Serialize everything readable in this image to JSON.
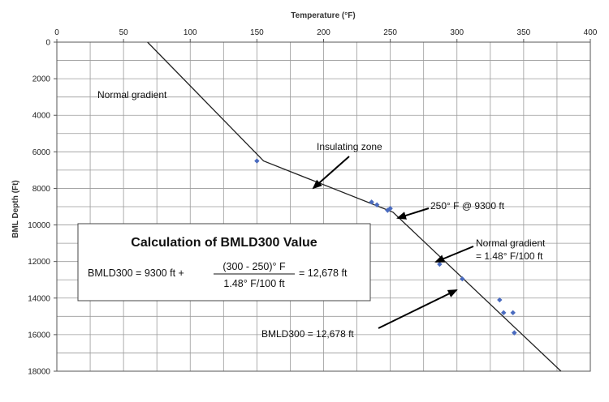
{
  "chart_data": {
    "type": "scatter",
    "title": "",
    "xlabel": "Temperature (°F)",
    "ylabel": "BML Depth (Ft)",
    "x_axis_position": "top",
    "y_axis_reversed": true,
    "xlim": [
      0,
      400
    ],
    "ylim": [
      0,
      18000
    ],
    "x_ticks": [
      "0",
      "50",
      "100",
      "150",
      "200",
      "250",
      "300",
      "350",
      "400"
    ],
    "y_ticks": [
      "0",
      "2000",
      "4000",
      "6000",
      "8000",
      "10000",
      "12000",
      "14000",
      "16000",
      "18000"
    ],
    "grid": true,
    "series": [
      {
        "kind": "points",
        "color": "#4a6bbf",
        "x": [
          150,
          236,
          240,
          248,
          250,
          287,
          304,
          332,
          335,
          342,
          343
        ],
        "y": [
          6500,
          8750,
          8900,
          9200,
          9100,
          12150,
          12950,
          14100,
          14800,
          14800,
          15900
        ]
      },
      {
        "kind": "line",
        "color": "#222222",
        "x": [
          68,
          155,
          252,
          378
        ],
        "y": [
          0,
          6500,
          9300,
          18000
        ]
      }
    ],
    "annotations": [
      {
        "text": "Normal gradient"
      },
      {
        "text": "Insulating zone"
      },
      {
        "text": "250° F @ 9300 ft"
      },
      {
        "text": "Normal gradient"
      },
      {
        "text": "= 1.48° F/100 ft"
      },
      {
        "text": "BMLD300 = 12,678 ft"
      }
    ],
    "calc_box": {
      "title": "Calculation of BMLD300 Value",
      "lhs": "BMLD300 =  9300 ft  +",
      "numerator": "(300 - 250)° F",
      "denominator": "1.48° F/100 ft",
      "result": "=  12,678 ft"
    }
  }
}
